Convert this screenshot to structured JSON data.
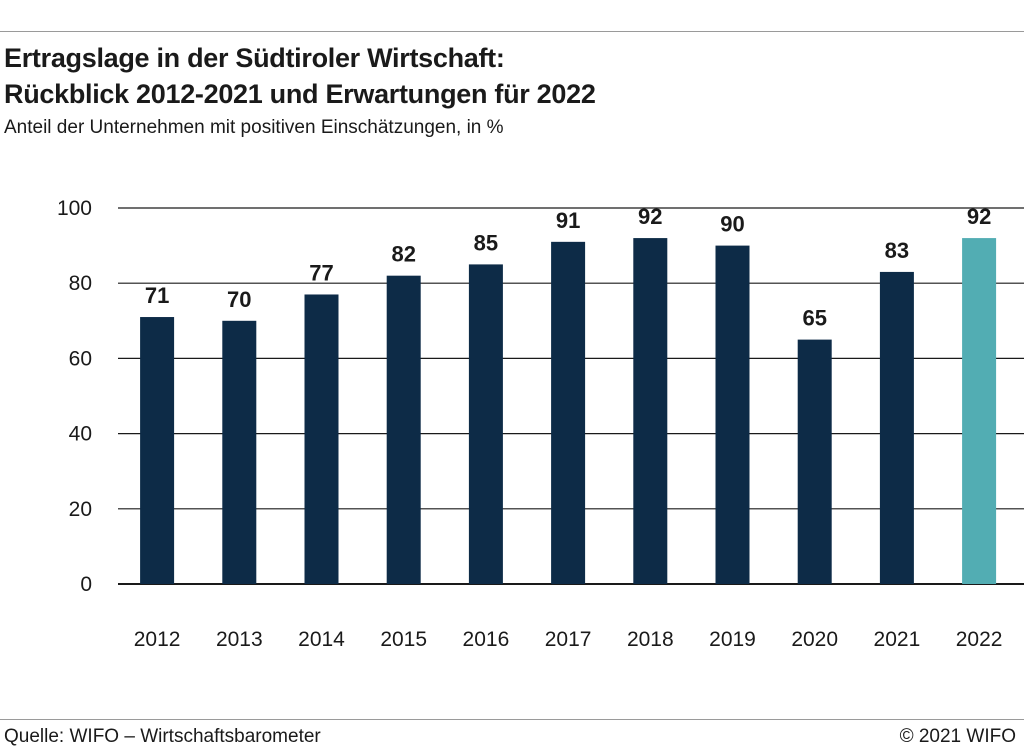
{
  "header": {
    "title_line1": "Ertragslage in der Südtiroler Wirtschaft:",
    "title_line2": "Rückblick 2012-2021 und Erwartungen für 2022",
    "subtitle": "Anteil der Unternehmen mit positiven Einschätzungen, in %"
  },
  "footer": {
    "source": "Quelle: WIFO – Wirtschaftsbarometer",
    "copyright": "© 2021 WIFO"
  },
  "chart_data": {
    "type": "bar",
    "title": "Ertragslage in der Südtiroler Wirtschaft: Rückblick 2012-2021 und Erwartungen für 2022",
    "subtitle": "Anteil der Unternehmen mit positiven Einschätzungen, in %",
    "xlabel": "",
    "ylabel": "",
    "categories": [
      "2012",
      "2013",
      "2014",
      "2015",
      "2016",
      "2017",
      "2018",
      "2019",
      "2020",
      "2021",
      "2022"
    ],
    "values": [
      71,
      70,
      77,
      82,
      85,
      91,
      92,
      90,
      65,
      83,
      92
    ],
    "ylim": [
      0,
      100
    ],
    "yticks": [
      0,
      20,
      40,
      60,
      80,
      100
    ],
    "grid": true,
    "legend": "none",
    "colors": {
      "actual": "#0d2b47",
      "forecast": "#52adb3",
      "gridline": "#1a1a1a",
      "text": "#1a1a1a"
    },
    "forecast_categories": [
      "2022"
    ]
  }
}
